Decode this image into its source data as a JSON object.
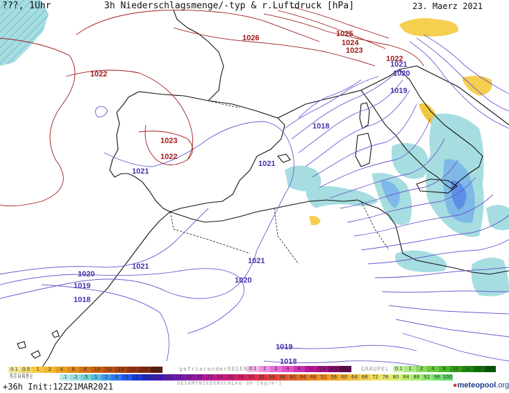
{
  "header": {
    "left": "???, 1Uhr",
    "center": "3h Niederschlagsmenge/-typ & r.Luftdruck [hPa]",
    "right": "23. Maerz 2021"
  },
  "isobars": {
    "blue_labels": [
      "1021",
      "1021",
      "1020",
      "1019",
      "1018",
      "1021",
      "1021",
      "1020",
      "1019",
      "1018",
      "1021",
      "1020",
      "1019",
      "1018"
    ],
    "red_labels": [
      "1026",
      "1025",
      "1024",
      "1023",
      "1022",
      "1022",
      "1023",
      "1022"
    ]
  },
  "legend": {
    "rain_label": "REGEN",
    "rain_values": [
      "0.1",
      "0.5",
      "1",
      "2",
      "4",
      "6",
      "8",
      "10",
      "12",
      "14",
      "16",
      "18",
      "2025+"
    ],
    "freezing_label": "gefrierenderREGEN",
    "freezing_values": [
      "0.1",
      "1",
      "2",
      "4",
      "8",
      "10",
      "14",
      "16",
      "2025+"
    ],
    "graupel_label": "GRAUPEL",
    "graupel_values": [
      "0.1",
      "1",
      "2",
      "4",
      "8",
      "10",
      "14",
      "16",
      "2025+"
    ],
    "snow_label": "SCHNEE",
    "snow_values": [
      ".1",
      ".2",
      ".5",
      "1",
      "2",
      "4",
      "6",
      "8",
      "10",
      "12",
      "14",
      "16",
      "18",
      "20",
      "22",
      "24",
      "26",
      "28",
      "30",
      "32",
      "34",
      "36",
      "40",
      "44",
      "48",
      "52",
      "56",
      "60",
      "64",
      "68",
      "72",
      "76",
      "80",
      "84",
      "88",
      "92",
      "96",
      "100"
    ],
    "total_label": "GESAMTNIEDERSCHLAG 3h [kg/m²]",
    "colors": {
      "rain": [
        "#f2e8a0",
        "#f0d870",
        "#f4c842",
        "#f0b830",
        "#e8a020",
        "#e08818",
        "#d87010",
        "#c86010",
        "#b85010",
        "#a84010",
        "#983010",
        "#802810",
        "#601808"
      ],
      "freezing": [
        "#f7b8e8",
        "#f090e0",
        "#e870d8",
        "#e050c8",
        "#d030b8",
        "#b81898",
        "#a01080",
        "#800868",
        "#600050"
      ],
      "graupel": [
        "#c8f0a0",
        "#a8e880",
        "#88d860",
        "#68c840",
        "#48b828",
        "#30a018",
        "#208810",
        "#107008",
        "#005800"
      ],
      "snow": [
        "#b8e8e8",
        "#98dde0",
        "#78d0d8",
        "#58b8e0",
        "#4098e8",
        "#3078f0",
        "#2058f0",
        "#1838d8",
        "#2020c0",
        "#4018b8",
        "#5818b0",
        "#7018b0",
        "#8818a8",
        "#a018a0",
        "#b81898",
        "#c81888",
        "#d01878",
        "#d82068",
        "#e02858",
        "#e03048",
        "#e04038",
        "#e05030",
        "#e06028",
        "#e07020",
        "#e88020",
        "#f09020",
        "#f0a028",
        "#f0b030",
        "#f0c040",
        "#f0d050",
        "#f0e060",
        "#e8e870",
        "#d8f070",
        "#c0f070",
        "#a8f070",
        "#90e870",
        "#78e070",
        "#60d870"
      ]
    }
  },
  "footer": "+36h Init:12Z21MAR2021",
  "logo": {
    "brand": "meteopool",
    "suffix": ".org"
  }
}
